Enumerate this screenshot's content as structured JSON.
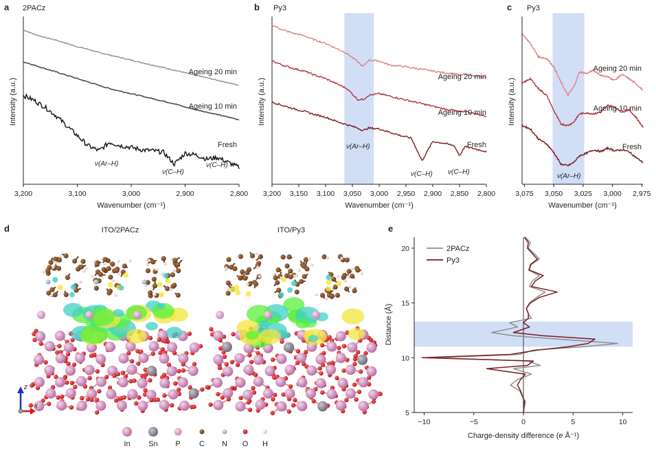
{
  "panels": {
    "a": {
      "letter": "a",
      "title": "2PACz",
      "xlabel": "Wavenumber (cm⁻¹)",
      "ylabel": "Intensity (a.u.)",
      "ticks": [
        "3,200",
        "3,100",
        "3,000",
        "2,900",
        "2,800"
      ],
      "curves": [
        "Ageing 20 min",
        "Ageing 10 min",
        "Fresh"
      ],
      "peaks": [
        "ν(Ar–H)",
        "ν(C–H)",
        "ν(C–H)"
      ],
      "colors": [
        "#8e8e8e",
        "#3a3a3a",
        "#111111"
      ]
    },
    "b": {
      "letter": "b",
      "title": "Py3",
      "xlabel": "Wavenumber (cm⁻¹)",
      "ylabel": "Intensity (a.u.)",
      "ticks": [
        "3,200",
        "3,150",
        "3,100",
        "3,050",
        "3,000",
        "2,950",
        "2,900",
        "2,850",
        "2,800"
      ],
      "curves": [
        "Ageing 20 min",
        "Ageing 10 min",
        "Fresh"
      ],
      "peaks": [
        "ν(Ar–H)",
        "ν(C–H)",
        "ν(C–H)"
      ],
      "colors": [
        "#e07f83",
        "#b3333a",
        "#7a1a1f"
      ]
    },
    "c": {
      "letter": "c",
      "title": "Py3",
      "xlabel": "Wavenumber (cm⁻¹)",
      "ylabel": "Intensity (a.u.)",
      "ticks": [
        "3,075",
        "3,050",
        "3,025",
        "3,000",
        "2,975"
      ],
      "curves": [
        "Ageing 20 min",
        "Ageing 10 min",
        "Fresh"
      ],
      "peaks": [
        "ν(Ar–H)"
      ],
      "colors": [
        "#e07f83",
        "#b3333a",
        "#7a1a1f"
      ]
    },
    "d": {
      "letter": "d",
      "titles": [
        "ITO/2PACz",
        "ITO/Py3"
      ],
      "axes": [
        "z",
        "x"
      ],
      "legend": [
        {
          "label": "In",
          "color": "#c987b5"
        },
        {
          "label": "Sn",
          "color": "#8a7f92"
        },
        {
          "label": "P",
          "color": "#d99ac8"
        },
        {
          "label": "C",
          "color": "#7a4a25"
        },
        {
          "label": "N",
          "color": "#9aa7c9"
        },
        {
          "label": "O",
          "color": "#d3151b"
        },
        {
          "label": "H",
          "color": "#f1d6d6"
        }
      ]
    },
    "e": {
      "letter": "e",
      "xlabel_prefix": "Charge-density difference (",
      "xlabel_unit": "e",
      "xlabel_suffix": " Å⁻¹)",
      "ylabel": "Distance (Å)",
      "legend": [
        "2PACz",
        "Py3"
      ]
    }
  },
  "chart_data": [
    {
      "id": "a",
      "type": "line",
      "title": "2PACz",
      "xlabel": "Wavenumber (cm⁻¹)",
      "ylabel": "Intensity (a.u.)",
      "xlim": [
        3200,
        2800
      ],
      "ylim": [
        0,
        10
      ],
      "x": [
        3200,
        3180,
        3160,
        3140,
        3120,
        3100,
        3080,
        3060,
        3040,
        3020,
        3000,
        2980,
        2960,
        2940,
        2920,
        2900,
        2880,
        2860,
        2840,
        2820,
        2800
      ],
      "series": [
        {
          "name": "Ageing 20 min",
          "values": [
            9.2,
            8.95,
            8.75,
            8.6,
            8.4,
            8.2,
            8.05,
            7.85,
            7.7,
            7.55,
            7.4,
            7.25,
            7.1,
            6.95,
            6.8,
            6.65,
            6.5,
            6.35,
            6.2,
            6.05,
            5.9
          ]
        },
        {
          "name": "Ageing 10 min",
          "values": [
            7.3,
            7.1,
            6.9,
            6.7,
            6.5,
            6.3,
            6.1,
            5.9,
            5.7,
            5.55,
            5.4,
            5.25,
            5.1,
            4.95,
            4.8,
            4.6,
            4.45,
            4.3,
            4.15,
            4.0,
            3.85
          ]
        },
        {
          "name": "Fresh",
          "values": [
            5.3,
            5.0,
            4.6,
            4.1,
            3.5,
            2.9,
            2.3,
            2.0,
            2.5,
            2.3,
            2.2,
            2.05,
            2.0,
            1.9,
            1.2,
            1.85,
            1.75,
            1.5,
            1.6,
            1.3,
            1.0
          ]
        }
      ],
      "annotations": [
        {
          "text": "ν(Ar–H)",
          "x": 3070
        },
        {
          "text": "ν(C–H)",
          "x": 2920
        },
        {
          "text": "ν(C–H)",
          "x": 2850
        }
      ]
    },
    {
      "id": "b",
      "type": "line",
      "title": "Py3",
      "xlabel": "Wavenumber (cm⁻¹)",
      "ylabel": "Intensity (a.u.)",
      "xlim": [
        3200,
        2800
      ],
      "ylim": [
        0,
        10
      ],
      "x": [
        3200,
        3180,
        3160,
        3140,
        3120,
        3100,
        3080,
        3060,
        3040,
        3030,
        3020,
        3000,
        2980,
        2960,
        2940,
        2920,
        2900,
        2880,
        2860,
        2850,
        2840,
        2820,
        2800
      ],
      "series": [
        {
          "name": "Ageing 20 min",
          "values": [
            9.5,
            9.2,
            9.0,
            8.85,
            8.6,
            8.4,
            8.1,
            7.8,
            7.3,
            7.0,
            7.4,
            7.35,
            7.1,
            7.05,
            6.95,
            6.85,
            6.75,
            6.65,
            6.6,
            6.5,
            6.55,
            6.45,
            6.35
          ]
        },
        {
          "name": "Ageing 10 min",
          "values": [
            7.35,
            7.1,
            6.9,
            6.75,
            6.5,
            6.3,
            6.0,
            5.7,
            5.05,
            5.05,
            5.3,
            5.4,
            5.25,
            5.1,
            4.95,
            4.8,
            4.65,
            4.5,
            4.4,
            4.3,
            4.35,
            4.2,
            4.05
          ]
        },
        {
          "name": "Fresh",
          "values": [
            4.9,
            4.7,
            4.5,
            4.35,
            4.15,
            4.0,
            3.75,
            3.55,
            3.35,
            3.2,
            3.35,
            3.3,
            3.1,
            2.9,
            2.75,
            1.4,
            2.55,
            2.45,
            2.3,
            1.7,
            2.25,
            2.1,
            1.95
          ]
        }
      ],
      "annotations": [
        {
          "text": "ν(Ar–H)",
          "x": 3030
        },
        {
          "text": "ν(C–H)",
          "x": 2920
        },
        {
          "text": "ν(C–H)",
          "x": 2850
        }
      ],
      "highlight": {
        "from": 3065,
        "to": 3010
      }
    },
    {
      "id": "c",
      "type": "line",
      "title": "Py3",
      "xlabel": "Wavenumber (cm⁻¹)",
      "ylabel": "Intensity (a.u.)",
      "xlim": [
        3077,
        2974
      ],
      "ylim": [
        0,
        10
      ],
      "x": [
        3077,
        3070,
        3063,
        3056,
        3050,
        3044,
        3038,
        3033,
        3028,
        3022,
        3016,
        3010,
        3004,
        2998,
        2992,
        2986,
        2980,
        2974
      ],
      "series": [
        {
          "name": "Ageing 20 min",
          "values": [
            9.0,
            8.4,
            7.6,
            7.5,
            7.0,
            6.1,
            5.3,
            5.8,
            6.7,
            6.6,
            6.8,
            6.5,
            6.4,
            6.2,
            6.55,
            6.3,
            6.0,
            5.6
          ]
        },
        {
          "name": "Ageing 10 min",
          "values": [
            6.0,
            6.3,
            5.7,
            5.3,
            4.4,
            3.6,
            3.5,
            3.7,
            4.2,
            4.25,
            4.2,
            4.3,
            4.7,
            4.6,
            4.3,
            4.45,
            4.0,
            3.4
          ]
        },
        {
          "name": "Fresh",
          "values": [
            3.5,
            3.3,
            2.7,
            2.4,
            1.9,
            1.2,
            1.1,
            1.3,
            1.7,
            1.85,
            2.05,
            1.95,
            2.15,
            2.0,
            2.05,
            1.95,
            1.6,
            1.3
          ]
        }
      ],
      "annotations": [
        {
          "text": "ν(Ar–H)",
          "x": 3038
        }
      ],
      "highlight": {
        "from": 3051,
        "to": 3024
      }
    },
    {
      "id": "e",
      "type": "line",
      "title": "",
      "xlabel": "Charge-density difference (e Å⁻¹)",
      "ylabel": "Distance (Å)",
      "xlim": [
        -11,
        11
      ],
      "ylim": [
        5,
        21
      ],
      "xticks": [
        -10,
        -5,
        0,
        5,
        10
      ],
      "yticks": [
        5,
        10,
        15,
        20
      ],
      "highlight_y": {
        "from": 11.0,
        "to": 13.3
      },
      "series": [
        {
          "name": "2PACz",
          "y": [
            5,
            6,
            7,
            7.5,
            8,
            8.5,
            9,
            9.3,
            9.7,
            10,
            10.3,
            10.7,
            11,
            11.3,
            11.7,
            12,
            12.3,
            12.8,
            13.2,
            13.6,
            14,
            14.5,
            15,
            15.5,
            16,
            16.5,
            17,
            17.5,
            18,
            18.5,
            19,
            19.5,
            20,
            20.5,
            21
          ],
          "x": [
            0,
            0.2,
            -0.4,
            -1.3,
            -0.6,
            0.8,
            -1,
            1.7,
            0.4,
            -9.2,
            -0.4,
            1,
            6,
            9.5,
            3.5,
            -1,
            -3.2,
            -0.6,
            -1.4,
            0.8,
            0.5,
            0.3,
            0.6,
            1.3,
            2.2,
            0.6,
            0.9,
            1.6,
            0.5,
            0.8,
            1.6,
            1.1,
            0.5,
            0.7,
            0.2
          ]
        },
        {
          "name": "Py3",
          "y": [
            5,
            6,
            7,
            7.5,
            8,
            8.5,
            9,
            9.3,
            9.7,
            10,
            10.3,
            10.7,
            11,
            11.3,
            11.7,
            12,
            12.3,
            12.8,
            13.2,
            13.6,
            14,
            14.5,
            15,
            15.5,
            16,
            16.5,
            17,
            17.5,
            18,
            18.5,
            19,
            19.5,
            20,
            20.5,
            21
          ],
          "x": [
            0,
            0.1,
            -0.3,
            -0.6,
            -0.3,
            0.2,
            -3.7,
            0.4,
            1,
            -10.2,
            -1.3,
            1.4,
            4.5,
            6.5,
            7.2,
            2,
            -1,
            0.6,
            0,
            0.5,
            0.5,
            0.3,
            0.7,
            1.6,
            3.4,
            0.8,
            1.2,
            2,
            0.6,
            0.7,
            1.4,
            0.9,
            0.4,
            0.5,
            0.1
          ]
        }
      ]
    }
  ]
}
